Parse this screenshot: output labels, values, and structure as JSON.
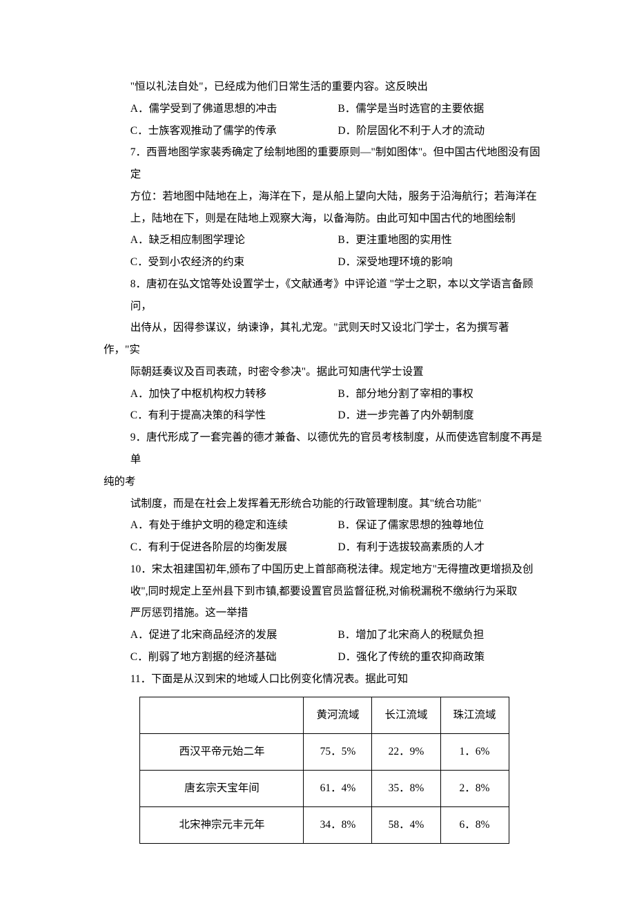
{
  "q6": {
    "cont": "\"恒以礼法自处\"，已经成为他们日常生活的重要内容。这反映出",
    "A": "A．儒学受到了佛道思想的冲击",
    "B": "B．儒学是当时选官的主要依据",
    "C": "C．士族客观推动了儒学的传承",
    "D": "D．阶层固化不利于人才的流动"
  },
  "q7": {
    "l1": "7．西晋地图学家裴秀确定了绘制地图的重要原则—\"制如图体\"。但中国古代地图没有固定",
    "l2": "方位：若地图中陆地在上，海洋在下，是从船上望向大陆，服务于沿海航行；若海洋在",
    "l3": "上，陆地在下，则是在陆地上观察大海，以备海防。由此可知中国古代的地图绘制",
    "A": "A．缺乏相应制图学理论",
    "B": "B．更注重地图的实用性",
    "C": "C．受到小农经济的约束",
    "D": "D．深受地理环境的影响"
  },
  "q8": {
    "l1": "8．唐初在弘文馆等处设置学士，《文献通考》中评论道 \"学士之职，本以文学语言备顾问，",
    "l2": "出侍从，因得参谋议，纳谏诤，其礼尤宠。\"武则天时又设北门学士，名为撰写著作，\"实",
    "l3": "际朝廷奏议及百司表疏，时密令参决\"。据此可知唐代学士设置",
    "A": "A．加快了中枢机构权力转移",
    "B": "B．部分地分割了宰相的事权",
    "C": "C．有利于提高决策的科学性",
    "D": "D．进一步完善了内外朝制度"
  },
  "q9": {
    "l1": "9．唐代形成了一套完善的德才兼备、以德优先的官员考核制度，从而使选官制度不再是单",
    "l1b": "纯的考",
    "l2": "试制度，而是在社会上发挥着无形统合功能的行政管理制度。其\"统合功能\"",
    "A": "A．有处于维护文明的稳定和连续",
    "B": "B．保证了儒家思想的独尊地位",
    "C": "C．有利于促进各阶层的均衡发展",
    "D": "D．有利于选拔较高素质的人才"
  },
  "q10": {
    "l1": "10．宋太祖建国初年,颁布了中国历史上首部商税法律。规定地方\"无得擅改更增损及创",
    "l2": "收\",同时规定上至州县下到市镇,都要设置官员监督征税,对偷税漏税不缴纳行为采取",
    "l3": "严厉惩罚措施。这一举措",
    "A": "A．促进了北宋商品经济的发展",
    "B": "B．增加了北宋商人的税赋负担",
    "C": "C．削弱了地方割据的经济基础",
    "D": "D．强化了传统的重农抑商政策"
  },
  "q11": {
    "stem": "11．下面是从汉到宋的地域人口比例变化情况表。据此可知",
    "table": {
      "columns": [
        "",
        "黄河流域",
        "长江流域",
        "珠江流域"
      ],
      "rows": [
        [
          "西汉平帝元始二年",
          "75．5%",
          "22．9%",
          "1．6%"
        ],
        [
          "唐玄宗天宝年间",
          "61．4%",
          "35．8%",
          "2．8%"
        ],
        [
          "北宋神宗元丰元年",
          "34．8%",
          "58．4%",
          "6．8%"
        ]
      ]
    }
  }
}
